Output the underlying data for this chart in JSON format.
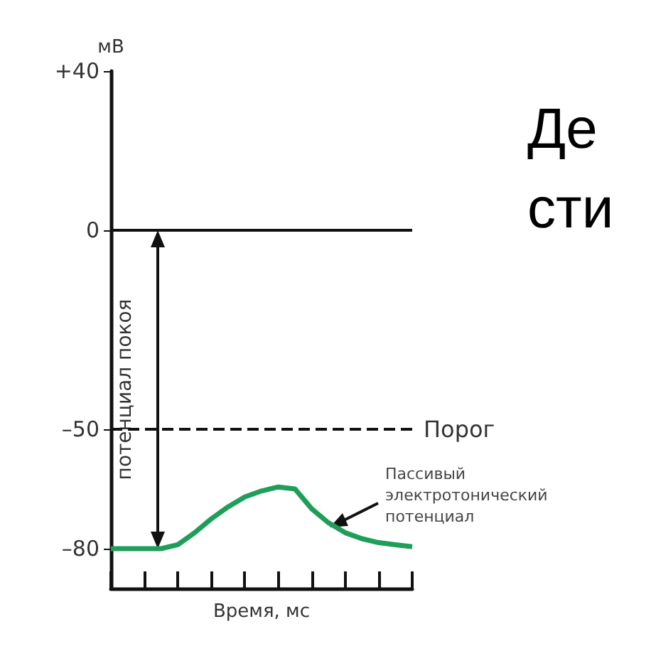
{
  "chart_data": {
    "type": "line",
    "title": "Де\nсти",
    "xlabel": "Время, мс",
    "ylabel": "мВ",
    "categories": [
      null,
      null,
      null,
      null,
      null,
      null,
      null,
      null,
      null,
      null,
      null,
      null,
      null,
      null,
      null,
      null,
      null,
      null,
      null
    ],
    "series": [
      {
        "color": "#1f9e5a",
        "values": [
          -80,
          -80,
          -80,
          -80,
          -79,
          -76,
          -72.5,
          -69.5,
          -67,
          -65.5,
          -64.5,
          -65,
          -70,
          -73.5,
          -76,
          -77.5,
          -78.5,
          -79,
          -79.5
        ]
      }
    ],
    "ylim": [
      -90,
      40
    ],
    "yticks": [
      {
        "value": -80,
        "label": "–80"
      },
      {
        "value": -50,
        "label": "–50"
      },
      0,
      {
        "value": 40,
        "label": "+40"
      }
    ],
    "ref_lines": [
      {
        "axis": "y",
        "value": 0,
        "label": null,
        "line_style": "solid",
        "color": "#111111"
      },
      {
        "axis": "y",
        "value": -50,
        "label": "Порог",
        "line_style": "dashed",
        "color": "#111111"
      }
    ],
    "annotations": [
      "потенциал покоя",
      "Пассивый\nэлектротонический\nпотенциал"
    ],
    "grid": false,
    "marker": "none",
    "line_style": "solid",
    "tick_labels": "y"
  }
}
